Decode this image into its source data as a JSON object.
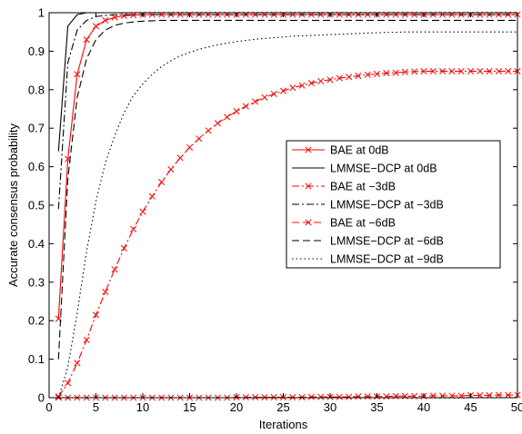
{
  "chart_data": {
    "type": "line",
    "title": "",
    "xlabel": "Iterations",
    "ylabel": "Accurate consensus probability",
    "xlim": [
      0,
      50
    ],
    "ylim": [
      0,
      1
    ],
    "xticks": [
      0,
      5,
      10,
      15,
      20,
      25,
      30,
      35,
      40,
      45,
      50
    ],
    "xtick_labels": [
      "0",
      "5",
      "10",
      "15",
      "20",
      "25",
      "30",
      "35",
      "40",
      "45",
      "50"
    ],
    "yticks": [
      0,
      0.1,
      0.2,
      0.3,
      0.4,
      0.5,
      0.6,
      0.7,
      0.8,
      0.9,
      1
    ],
    "ytick_labels": [
      "0",
      "0.1",
      "0.2",
      "0.3",
      "0.4",
      "0.5",
      "0.6",
      "0.7",
      "0.8",
      "0.9",
      "1"
    ],
    "grid": false,
    "legend_position": "right",
    "x": [
      1,
      2,
      3,
      4,
      5,
      6,
      7,
      8,
      9,
      10,
      11,
      12,
      13,
      14,
      15,
      16,
      17,
      18,
      19,
      20,
      21,
      22,
      23,
      24,
      25,
      26,
      27,
      28,
      29,
      30,
      31,
      32,
      33,
      34,
      35,
      36,
      37,
      38,
      39,
      40,
      41,
      42,
      43,
      44,
      45,
      46,
      47,
      48,
      49,
      50
    ],
    "series": [
      {
        "name": "BAE at 0dB",
        "color": "#ff0000",
        "dash": "",
        "marker": "x",
        "values": [
          0.205,
          0.62,
          0.84,
          0.93,
          0.965,
          0.98,
          0.988,
          0.992,
          0.994,
          0.995,
          0.995,
          0.995,
          0.995,
          0.995,
          0.995,
          0.995,
          0.995,
          0.995,
          0.995,
          0.995,
          0.995,
          0.995,
          0.995,
          0.995,
          0.995,
          0.995,
          0.995,
          0.995,
          0.995,
          0.995,
          0.995,
          0.995,
          0.995,
          0.995,
          0.995,
          0.995,
          0.995,
          0.995,
          0.995,
          0.995,
          0.995,
          0.995,
          0.995,
          0.995,
          0.995,
          0.995,
          0.995,
          0.995,
          0.995,
          0.995
        ]
      },
      {
        "name": "LMMSE−DCP at 0dB",
        "color": "#000000",
        "dash": "",
        "marker": "",
        "values": [
          0.64,
          0.965,
          0.995,
          1,
          1,
          1,
          1,
          1,
          1,
          1,
          1,
          1,
          1,
          1,
          1,
          1,
          1,
          1,
          1,
          1,
          1,
          1,
          1,
          1,
          1,
          1,
          1,
          1,
          1,
          1,
          1,
          1,
          1,
          1,
          1,
          1,
          1,
          1,
          1,
          1,
          1,
          1,
          1,
          1,
          1,
          1,
          1,
          1,
          1,
          1
        ]
      },
      {
        "name": "BAE at −3dB",
        "color": "#ff0000",
        "dash": "8,3,2,3",
        "marker": "x",
        "values": [
          0.003,
          0.038,
          0.09,
          0.15,
          0.215,
          0.275,
          0.333,
          0.388,
          0.438,
          0.483,
          0.523,
          0.56,
          0.593,
          0.623,
          0.65,
          0.673,
          0.694,
          0.713,
          0.729,
          0.744,
          0.757,
          0.769,
          0.78,
          0.789,
          0.797,
          0.805,
          0.811,
          0.817,
          0.822,
          0.826,
          0.83,
          0.833,
          0.836,
          0.839,
          0.841,
          0.843,
          0.844,
          0.846,
          0.847,
          0.848,
          0.848,
          0.848,
          0.848,
          0.848,
          0.848,
          0.848,
          0.848,
          0.848,
          0.848,
          0.848
        ]
      },
      {
        "name": "LMMSE−DCP at −3dB",
        "color": "#000000",
        "dash": "8,3,2,3",
        "marker": "",
        "values": [
          0.49,
          0.87,
          0.955,
          0.98,
          0.99,
          0.993,
          0.995,
          0.995,
          0.995,
          0.995,
          0.995,
          0.995,
          0.995,
          0.995,
          0.995,
          0.995,
          0.995,
          0.995,
          0.995,
          0.995,
          0.995,
          0.995,
          0.995,
          0.995,
          0.995,
          0.995,
          0.995,
          0.995,
          0.995,
          0.995,
          0.995,
          0.995,
          0.995,
          0.995,
          0.995,
          0.995,
          0.995,
          0.995,
          0.995,
          0.995,
          0.995,
          0.995,
          0.995,
          0.995,
          0.995,
          0.995,
          0.995,
          0.995,
          0.995,
          0.995
        ]
      },
      {
        "name": "BAE at −6dB",
        "color": "#ff0000",
        "dash": "8,4",
        "marker": "x",
        "values": [
          0,
          0,
          0,
          0,
          0,
          0,
          0,
          0,
          0,
          0,
          0,
          0,
          0,
          0,
          0,
          0,
          0,
          0,
          0,
          0.001,
          0.001,
          0.001,
          0.001,
          0.001,
          0.001,
          0.001,
          0.001,
          0.002,
          0.002,
          0.002,
          0.002,
          0.002,
          0.003,
          0.003,
          0.003,
          0.003,
          0.004,
          0.004,
          0.004,
          0.004,
          0.005,
          0.005,
          0.005,
          0.005,
          0.006,
          0.006,
          0.006,
          0.007,
          0.007,
          0.007
        ]
      },
      {
        "name": "LMMSE−DCP at −6dB",
        "color": "#000000",
        "dash": "8,4",
        "marker": "",
        "values": [
          0.1,
          0.57,
          0.78,
          0.88,
          0.93,
          0.955,
          0.967,
          0.973,
          0.976,
          0.978,
          0.979,
          0.98,
          0.98,
          0.98,
          0.98,
          0.98,
          0.98,
          0.98,
          0.98,
          0.98,
          0.98,
          0.98,
          0.98,
          0.98,
          0.98,
          0.98,
          0.98,
          0.98,
          0.98,
          0.98,
          0.98,
          0.98,
          0.98,
          0.98,
          0.98,
          0.98,
          0.98,
          0.98,
          0.98,
          0.98,
          0.98,
          0.98,
          0.98,
          0.98,
          0.98,
          0.98,
          0.98,
          0.98,
          0.98,
          0.98
        ]
      },
      {
        "name": "LMMSE−DCP at −9dB",
        "color": "#000000",
        "dash": "1.5,3",
        "marker": "",
        "values": [
          0,
          0.08,
          0.22,
          0.38,
          0.51,
          0.61,
          0.68,
          0.74,
          0.785,
          0.815,
          0.84,
          0.86,
          0.875,
          0.888,
          0.897,
          0.905,
          0.911,
          0.917,
          0.921,
          0.925,
          0.928,
          0.931,
          0.933,
          0.935,
          0.937,
          0.939,
          0.94,
          0.941,
          0.942,
          0.943,
          0.944,
          0.945,
          0.946,
          0.947,
          0.948,
          0.949,
          0.949,
          0.95,
          0.95,
          0.95,
          0.95,
          0.95,
          0.95,
          0.95,
          0.95,
          0.95,
          0.95,
          0.95,
          0.95,
          0.95
        ]
      }
    ]
  }
}
